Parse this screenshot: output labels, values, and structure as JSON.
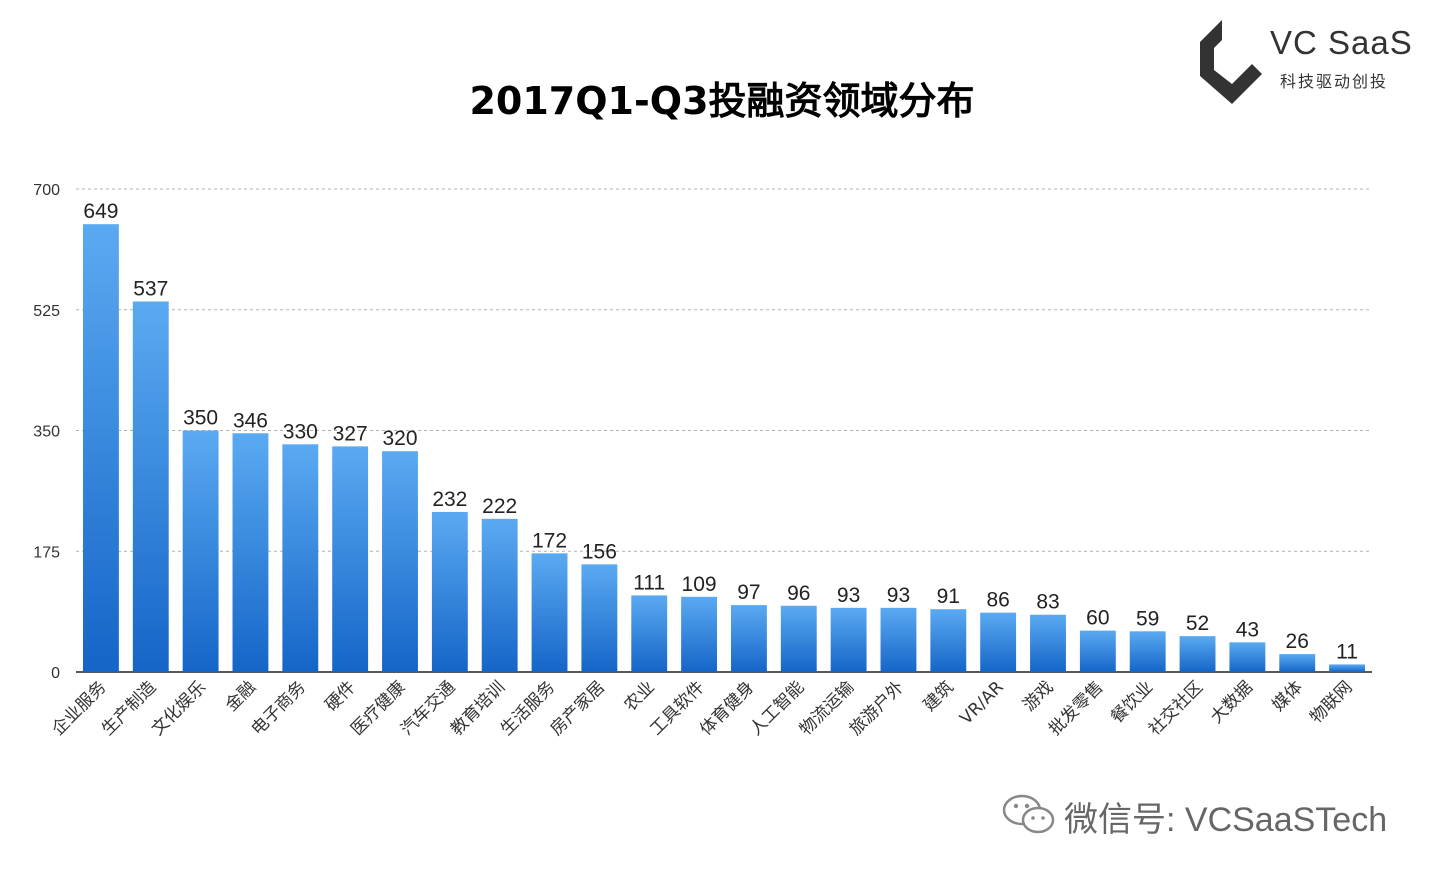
{
  "chart_data": {
    "type": "bar",
    "title": "2017Q1-Q3投融资领域分布",
    "categories": [
      "企业服务",
      "生产制造",
      "文化娱乐",
      "金融",
      "电子商务",
      "硬件",
      "医疗健康",
      "汽车交通",
      "教育培训",
      "生活服务",
      "房产家居",
      "农业",
      "工具软件",
      "体育健身",
      "人工智能",
      "物流运输",
      "旅游户外",
      "建筑",
      "VR/AR",
      "游戏",
      "批发零售",
      "餐饮业",
      "社交社区",
      "大数据",
      "媒体",
      "物联网"
    ],
    "values": [
      649,
      537,
      350,
      346,
      330,
      327,
      320,
      232,
      222,
      172,
      156,
      111,
      109,
      97,
      96,
      93,
      93,
      91,
      86,
      83,
      60,
      59,
      52,
      43,
      26,
      11
    ],
    "yticks": [
      0,
      175,
      350,
      525,
      700
    ],
    "ylim": [
      0,
      700
    ],
    "xlabel": "",
    "ylabel": "",
    "grid": true,
    "bar_color_top": "#5aaaf2",
    "bar_color_bottom": "#1565c8"
  },
  "brand": {
    "name": "VC SaaS",
    "tagline": "科技驱动创投",
    "color": "#333333"
  },
  "wechat": {
    "label": "微信号: VCSaaSTech",
    "icon": "wechat-icon"
  }
}
